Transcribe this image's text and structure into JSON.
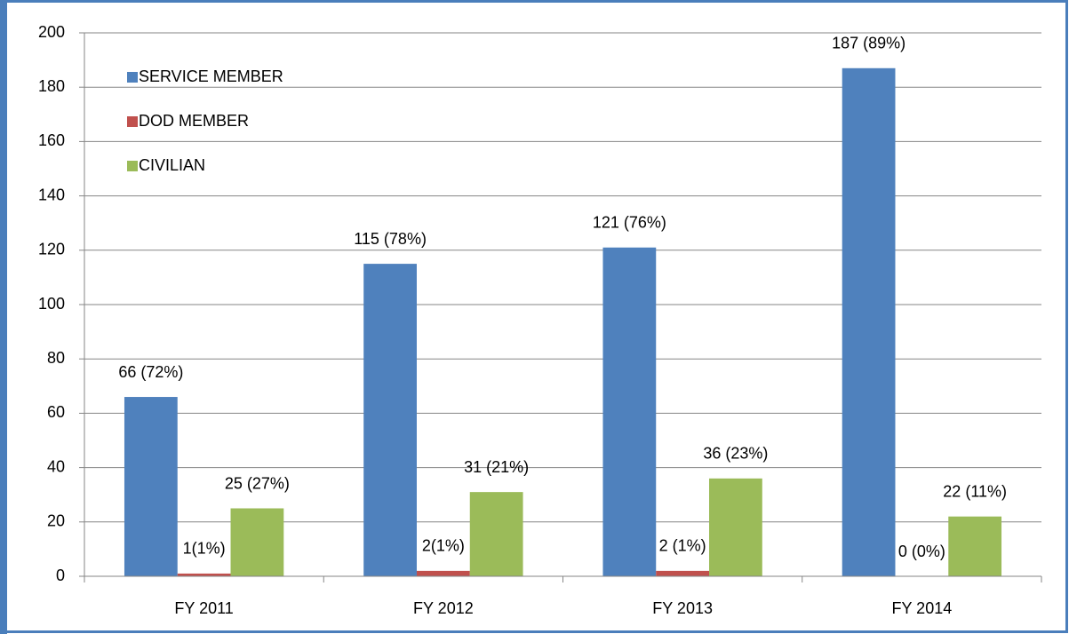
{
  "chart_data": {
    "type": "bar",
    "categories": [
      "FY 2011",
      "FY 2012",
      "FY 2013",
      "FY 2014"
    ],
    "series": [
      {
        "name": "SERVICE MEMBER",
        "color": "#4f81bd",
        "values": [
          66,
          115,
          121,
          187
        ],
        "value_labels": [
          "66 (72%)",
          "115 (78%)",
          "121 (76%)",
          "187 (89%)"
        ]
      },
      {
        "name": "DOD MEMBER",
        "color": "#c0504d",
        "values": [
          1,
          2,
          2,
          0
        ],
        "value_labels": [
          "1(1%)",
          "2(1%)",
          "2 (1%)",
          "0 (0%)"
        ]
      },
      {
        "name": "CIVILIAN",
        "color": "#9bbb59",
        "values": [
          25,
          31,
          36,
          22
        ],
        "value_labels": [
          "25 (27%)",
          "31 (21%)",
          "36 (23%)",
          "22 (11%)"
        ]
      }
    ],
    "ylim": [
      0,
      200
    ],
    "yticks": [
      0,
      20,
      40,
      60,
      80,
      100,
      120,
      140,
      160,
      180,
      200
    ],
    "grid": true,
    "legend": "upper left"
  }
}
